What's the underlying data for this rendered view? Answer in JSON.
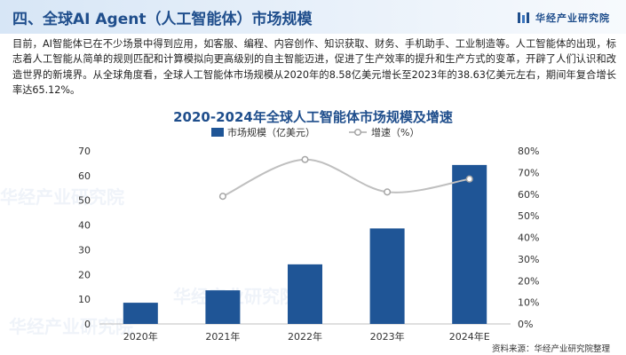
{
  "header": {
    "title": "四、全球AI Agent（人工智能体）市场规模",
    "brand": "华经产业研究院"
  },
  "paragraph": "目前，AI智能体已在不少场景中得到应用，如客服、编程、内容创作、知识获取、财务、手机助手、工业制造等。人工智能体的出现，标志着人工智能从简单的规则匹配和计算模拟向更高级别的自主智能迈进，促进了生产效率的提升和生产方式的变革，开辟了人们认识和改造世界的新境界。从全球角度看，全球人工智能体市场规模从2020年的8.58亿美元增长至2023年的38.63亿美元左右，期间年复合增长率达65.12%。",
  "chart_data": {
    "type": "bar+line",
    "title": "2020-2024年全球人工智能体市场规模及增速",
    "categories": [
      "2020年",
      "2021年",
      "2022年",
      "2023年",
      "2024年E"
    ],
    "series": [
      {
        "name": "市场规模（亿美元）",
        "type": "bar",
        "axis": "left",
        "values": [
          8.58,
          13.6,
          24.1,
          38.63,
          64.3
        ],
        "color": "#1f5596"
      },
      {
        "name": "增速（%）",
        "type": "line",
        "axis": "right",
        "values": [
          null,
          59,
          76,
          61,
          67
        ],
        "color": "#bfbfbf"
      }
    ],
    "y_left": {
      "min": 0,
      "max": 70,
      "ticks": [
        "0",
        "10",
        "20",
        "30",
        "40",
        "50",
        "60",
        "70"
      ]
    },
    "y_right": {
      "min": 0,
      "max": 80,
      "ticks": [
        "0%",
        "10%",
        "20%",
        "30%",
        "40%",
        "50%",
        "60%",
        "70%",
        "80%"
      ]
    },
    "legend_position": "top",
    "grid": false
  },
  "source": "资料来源：华经产业研究院整理",
  "watermark": "华经产业研究院"
}
